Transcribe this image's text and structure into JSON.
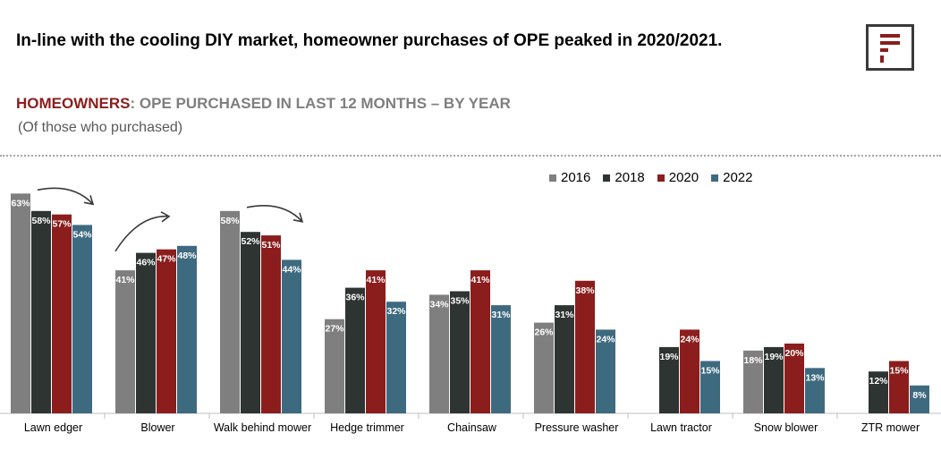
{
  "headline": "In-line with the cooling DIY market, homeowner purchases of OPE peaked in 2020/2021.",
  "subtitle_accent": "HOMEOWNERS",
  "subtitle_rest": ": OPE PURCHASED IN LAST 12 MONTHS – BY YEAR",
  "note": "(Of those who purchased)",
  "logo": {
    "icon": "brand-f-logo",
    "color": "#8b1d1d",
    "frame": "#3a3a3a"
  },
  "legend": [
    {
      "label": "2016",
      "color": "#7f7f7f"
    },
    {
      "label": "2018",
      "color": "#2e3432"
    },
    {
      "label": "2020",
      "color": "#8b1d1d"
    },
    {
      "label": "2022",
      "color": "#3e6a80"
    }
  ],
  "chart_data": {
    "type": "bar",
    "categories": [
      "Lawn edger",
      "Blower",
      "Walk behind mower",
      "Hedge trimmer",
      "Chainsaw",
      "Pressure washer",
      "Lawn tractor",
      "Snow blower",
      "ZTR mower"
    ],
    "series": [
      {
        "name": "2016",
        "color": "#7f7f7f",
        "values": [
          63,
          41,
          58,
          27,
          34,
          26,
          null,
          18,
          null
        ]
      },
      {
        "name": "2018",
        "color": "#2e3432",
        "values": [
          58,
          46,
          52,
          36,
          35,
          31,
          19,
          19,
          12
        ]
      },
      {
        "name": "2020",
        "color": "#8b1d1d",
        "values": [
          57,
          47,
          51,
          41,
          41,
          38,
          24,
          20,
          15
        ]
      },
      {
        "name": "2022",
        "color": "#3e6a80",
        "values": [
          54,
          48,
          44,
          32,
          31,
          24,
          15,
          13,
          8
        ]
      }
    ],
    "value_suffix": "%",
    "ylim": [
      0,
      65
    ],
    "grid": false,
    "legend_position": "top-right",
    "trend_arrows": [
      {
        "category": "Lawn edger",
        "direction": "down"
      },
      {
        "category": "Blower",
        "direction": "up"
      },
      {
        "category": "Walk behind mower",
        "direction": "down"
      }
    ]
  }
}
